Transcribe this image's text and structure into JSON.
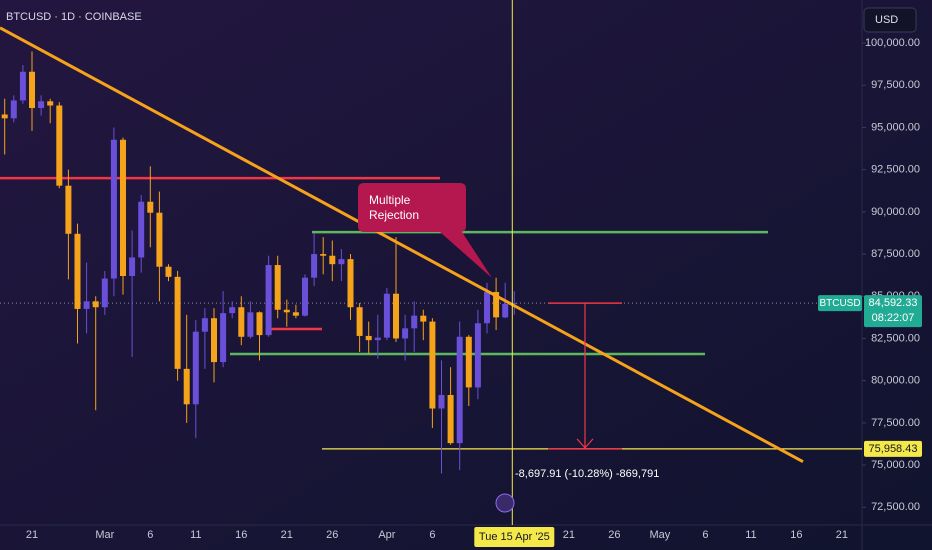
{
  "chart_data": {
    "type": "candlestick",
    "title": "BTCUSD · 1D · COINBASE",
    "currency": "USD",
    "symbol": "BTCUSD",
    "categories": [
      null,
      null,
      null,
      "21",
      null,
      null,
      null,
      null,
      null,
      null,
      null,
      "Mar",
      null,
      null,
      null,
      null,
      "6",
      null,
      null,
      null,
      null,
      "11",
      null,
      null,
      null,
      null,
      "16",
      null,
      null,
      null,
      null,
      "21",
      null,
      null,
      null,
      null,
      "26",
      null,
      null,
      null,
      null,
      null,
      "Apr",
      null,
      null,
      null,
      null,
      "6",
      null,
      null,
      null,
      null,
      null,
      null,
      null,
      null,
      "Tue 15 Apr '25",
      null,
      null,
      null,
      null,
      null,
      "21",
      null,
      null,
      null,
      null,
      "26",
      null,
      null,
      null,
      null,
      "May",
      null,
      null,
      null,
      null,
      "6",
      null,
      null,
      null,
      null,
      "11",
      null,
      null,
      null,
      null,
      "16",
      null,
      null,
      null,
      null,
      "21"
    ],
    "open": [
      95770,
      95540,
      96600,
      98300,
      96150,
      96550,
      96300,
      91550,
      88700,
      84250,
      84700,
      84350,
      86050,
      94270,
      86200,
      87300,
      90600,
      89950,
      86750,
      86150,
      80700,
      78600,
      82900,
      83700,
      81100,
      84000,
      84350,
      82600,
      84050,
      82700,
      86850,
      84200,
      84050,
      83850,
      86100,
      87500,
      87400,
      86900,
      87200,
      84350,
      82650,
      82400,
      82550,
      85150,
      82500,
      83100,
      83850,
      83500,
      78350,
      79150,
      76300,
      82600,
      79600,
      83400,
      85250,
      83750,
      84550,
      null,
      null,
      null,
      null,
      null,
      null,
      null,
      null,
      null,
      null,
      null,
      null,
      null,
      null,
      null,
      null,
      null,
      null,
      null,
      null,
      null,
      null,
      null,
      null,
      null,
      null,
      null,
      null,
      null,
      null,
      null,
      null,
      null,
      null,
      null,
      null
    ],
    "high": [
      96700,
      96900,
      98700,
      99500,
      96900,
      96700,
      96500,
      92500,
      89300,
      87000,
      85000,
      86500,
      95000,
      94400,
      88900,
      91000,
      92700,
      91200,
      86900,
      86500,
      83900,
      83600,
      84300,
      84300,
      85300,
      84700,
      85000,
      84700,
      84100,
      87400,
      87400,
      84800,
      84500,
      86300,
      88750,
      88500,
      88300,
      87800,
      87500,
      84600,
      83500,
      83900,
      85500,
      88500,
      83900,
      84700,
      84200,
      83700,
      81200,
      80800,
      83500,
      82700,
      84200,
      85800,
      86100,
      85800,
      85300,
      null,
      null,
      null,
      null,
      null,
      null,
      null,
      null,
      null,
      null,
      null,
      null,
      null,
      null,
      null,
      null,
      null,
      null,
      null,
      null,
      null,
      null,
      null,
      null,
      null,
      null,
      null,
      null,
      null,
      null,
      null,
      null,
      null,
      null,
      null,
      null
    ],
    "low": [
      93400,
      95300,
      96400,
      94800,
      95700,
      95250,
      91400,
      86000,
      82200,
      82800,
      78250,
      83900,
      85000,
      85100,
      81400,
      86400,
      87900,
      84700,
      85900,
      80000,
      77500,
      76600,
      80700,
      79900,
      80800,
      83700,
      82100,
      82500,
      81200,
      82600,
      83700,
      83200,
      83700,
      83800,
      85600,
      86300,
      85900,
      85900,
      83600,
      81700,
      81600,
      81300,
      82400,
      82300,
      81200,
      81700,
      82400,
      77200,
      74500,
      76200,
      74700,
      78500,
      78900,
      82800,
      83000,
      83700,
      83900,
      null,
      null,
      null,
      null,
      null,
      null,
      null,
      null,
      null,
      null,
      null,
      null,
      null,
      null,
      null,
      null,
      null,
      null,
      null,
      null,
      null,
      null,
      null,
      null,
      null,
      null,
      null,
      null,
      null,
      null,
      null,
      null,
      null,
      null,
      null,
      null
    ],
    "close": [
      95540,
      96600,
      98300,
      96150,
      96550,
      96300,
      91550,
      88700,
      84250,
      84700,
      84350,
      86050,
      94270,
      86200,
      87300,
      90600,
      89950,
      86750,
      86150,
      80700,
      78600,
      82900,
      83700,
      81100,
      84000,
      84350,
      82600,
      84050,
      82700,
      86850,
      84200,
      84050,
      83850,
      86100,
      87500,
      87400,
      86900,
      87200,
      84350,
      82650,
      82400,
      82550,
      85150,
      82500,
      83100,
      83850,
      83500,
      78350,
      79150,
      76300,
      82600,
      79600,
      83400,
      85250,
      83750,
      84550,
      84592.33,
      null,
      null,
      null,
      null,
      null,
      null,
      null,
      null,
      null,
      null,
      null,
      null,
      null,
      null,
      null,
      null,
      null,
      null,
      null,
      null,
      null,
      null,
      null,
      null,
      null,
      null,
      null,
      null,
      null,
      null,
      null,
      null,
      null,
      null,
      null,
      null
    ],
    "up_color": "#6a4fd8",
    "down_color": "#f5a31a",
    "ylim": [
      71450,
      102550
    ],
    "yticks": [
      {
        "value": 72500,
        "label": "72,500.00"
      },
      {
        "value": 75000,
        "label": "75,000.00"
      },
      {
        "value": 77500,
        "label": "77,500.00"
      },
      {
        "value": 80000,
        "label": "80,000.00"
      },
      {
        "value": 82500,
        "label": "82,500.00"
      },
      {
        "value": 85000,
        "label": "85,000.00"
      },
      {
        "value": 87500,
        "label": "87,500.00"
      },
      {
        "value": 90000,
        "label": "90,000.00"
      },
      {
        "value": 92500,
        "label": "92,500.00"
      },
      {
        "value": 95000,
        "label": "95,000.00"
      },
      {
        "value": 97500,
        "label": "97,500.00"
      },
      {
        "value": 100000,
        "label": "100,000.00"
      }
    ],
    "last_price": {
      "value": 84592.33,
      "label": "84,592.33",
      "countdown": "08:22:07",
      "color": "#22ab94"
    },
    "target": {
      "value": 75958.43,
      "label": "75,958.43",
      "color": "#f5e94a"
    },
    "levels": [
      {
        "value": 92000,
        "color": "#f23645"
      },
      {
        "value": 88800,
        "color": "#5cb85c"
      },
      {
        "value": 81580,
        "color": "#5cb85c"
      },
      {
        "value": 83060,
        "color": "#f23645"
      }
    ],
    "trend_line": {
      "values": [
        100900,
        75200
      ],
      "color": "#f7a21b"
    },
    "measure": {
      "label": "-8,697.91 (-10.28%) -869,791",
      "color": "#f23645"
    },
    "annotation": {
      "lines": [
        "Multiple",
        "Rejection"
      ],
      "color": "#b5174f"
    }
  }
}
